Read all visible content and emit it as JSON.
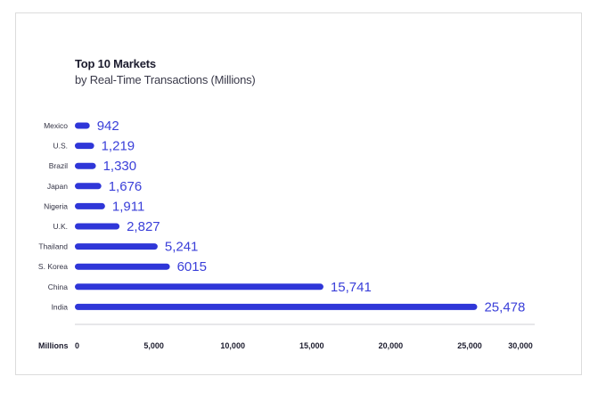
{
  "chart_data": {
    "type": "bar",
    "orientation": "horizontal",
    "title": "Top 10 Markets",
    "subtitle": "by Real-Time Transactions (Millions)",
    "xlabel": "Millions",
    "ylabel": "",
    "categories": [
      "Mexico",
      "U.S.",
      "Brazil",
      "Japan",
      "Nigeria",
      "U.K.",
      "Thailand",
      "S. Korea",
      "China",
      "India"
    ],
    "values": [
      942,
      1219,
      1330,
      1676,
      1911,
      2827,
      5241,
      6015,
      15741,
      25478
    ],
    "value_labels": [
      "942",
      "1,219",
      "1,330",
      "1,676",
      "1,911",
      "2,827",
      "5,241",
      "6015",
      "15,741",
      "25,478"
    ],
    "x_ticks": [
      0,
      5000,
      10000,
      15000,
      20000,
      25000,
      30000
    ],
    "x_tick_labels": [
      "0",
      "5,000",
      "10,000",
      "15,000",
      "20,000",
      "25,000",
      "30,000"
    ],
    "xlim": [
      0,
      30000
    ],
    "grid": false,
    "legend": "none",
    "colors": {
      "bar": "#2f36d8",
      "label": "#3a3fd9",
      "text": "#1c1c2e",
      "axis": "#cfcfd6"
    }
  }
}
